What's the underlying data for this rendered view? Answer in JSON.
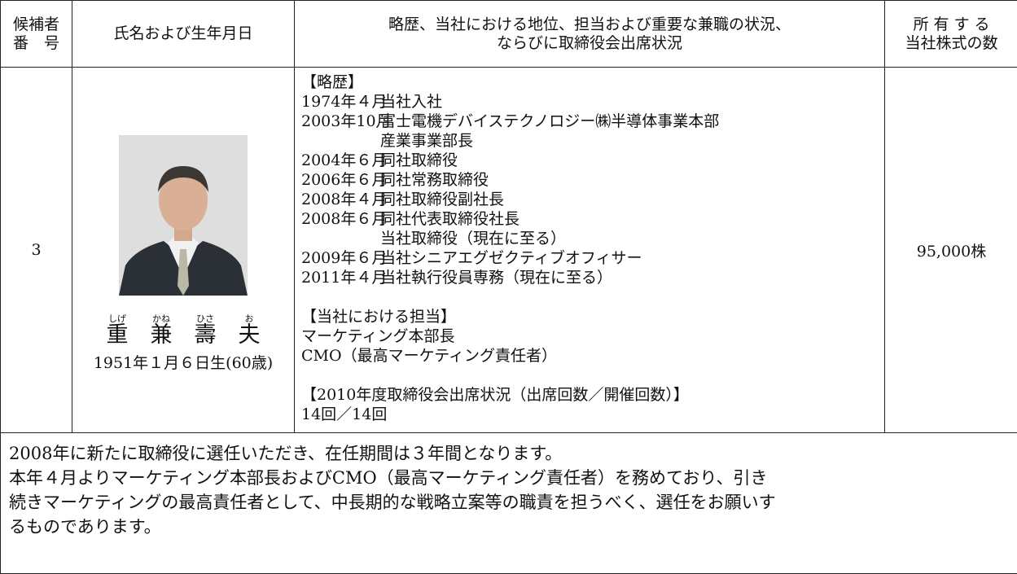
{
  "header": {
    "number": [
      "候補者",
      "番　号"
    ],
    "name": "氏名および生年月日",
    "career": [
      "略歴、当社における地位、担当および重要な兼職の状況、",
      "ならびに取締役会出席状況"
    ],
    "shares": [
      "所 有 す る",
      "当社株式の数"
    ]
  },
  "candidate": {
    "number": "3",
    "furigana": [
      "しげ",
      "かね",
      "ひさ",
      "お"
    ],
    "name": [
      "重",
      "兼",
      "壽",
      "夫"
    ],
    "birth": "1951年１月６日生(60歳)",
    "career": {
      "heading": "【略歴】",
      "entries": [
        {
          "date": "1974年４月",
          "lines": [
            "当社入社"
          ]
        },
        {
          "date": "2003年10月",
          "lines": [
            "富士電機デバイステクノロジー㈱半導体事業本部",
            "産業事業部長"
          ]
        },
        {
          "date": "2004年６月",
          "lines": [
            "同社取締役"
          ]
        },
        {
          "date": "2006年６月",
          "lines": [
            "同社常務取締役"
          ]
        },
        {
          "date": "2008年４月",
          "lines": [
            "同社取締役副社長"
          ]
        },
        {
          "date": "2008年６月",
          "lines": [
            "同社代表取締役社長",
            "当社取締役（現在に至る）"
          ]
        },
        {
          "date": "2009年６月",
          "lines": [
            "当社シニアエグゼクティブオフィサー"
          ]
        },
        {
          "date": "2011年４月",
          "lines": [
            "当社執行役員専務（現在に至る）"
          ]
        }
      ]
    },
    "duties": {
      "heading": "【当社における担当】",
      "lines": [
        "マーケティング本部長",
        "CMO（最高マーケティング責任者）"
      ]
    },
    "attendance": {
      "heading": "【2010年度取締役会出席状況（出席回数／開催回数）】",
      "lines": [
        "14回／14回"
      ]
    },
    "shares": "95,000株"
  },
  "reason": [
    "2008年に新たに取締役に選任いただき、在任期間は３年間となります。",
    "本年４月よりマーケティング本部長およびCMO（最高マーケティング責任者）を務めており、引き",
    "続きマーケティングの最高責任者として、中長期的な戦略立案等の職責を担うべく、選任をお願いす",
    "るものであります。"
  ]
}
